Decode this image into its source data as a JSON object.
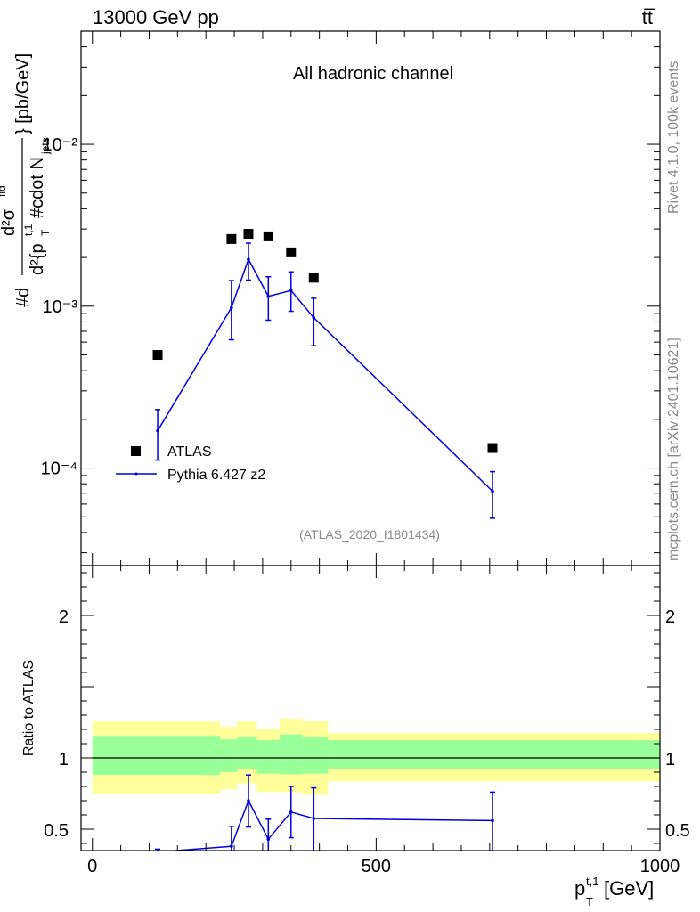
{
  "header": {
    "energy_label": "13000 GeV pp",
    "process_label": "tt̅"
  },
  "side_labels": {
    "rivet": "Rivet 4.1.0,  100k events",
    "mcplots": "mcplots.cern.ch [arXiv:2401.10621]"
  },
  "chart_data": [
    {
      "type": "scatter",
      "panel": "main",
      "title": "All hadronic channel",
      "analysis_id": "(ATLAS_2020_I1801434)",
      "ylabel": "#d d²σᶠᶦᵈ / d²{p_T^{t,1} #cdot N_jets} [pb/GeV]",
      "ylabel_parts": {
        "prefix": "#d",
        "numerator": "d²σ",
        "numerator_sup": "fid",
        "denominator": "d²{p",
        "denominator_sub": "T",
        "denominator_sup": "t,1",
        "denominator_rest": "#cdot N",
        "denominator_rest_sub": "jets",
        "suffix": "} [pb/GeV]"
      },
      "xlim": [
        -20,
        1000
      ],
      "ylim": [
        2.5e-05,
        0.05
      ],
      "yscale": "log",
      "y_tick_labels": [
        "10⁻⁴",
        "10⁻³",
        "10⁻²"
      ],
      "y_tick_values": [
        0.0001,
        0.001,
        0.01
      ],
      "legend_placement": "bottom-left",
      "series": [
        {
          "name": "ATLAS",
          "marker": "square",
          "color": "#000000",
          "x": [
            115,
            245,
            275,
            310,
            350,
            390,
            705
          ],
          "y": [
            0.0005,
            0.0026,
            0.0028,
            0.0027,
            0.00215,
            0.0015,
            0.000133
          ]
        },
        {
          "name": "Pythia 6.427 z2",
          "marker": "line",
          "color": "#0000dd",
          "x": [
            115,
            245,
            275,
            310,
            350,
            390,
            705
          ],
          "y": [
            0.00017,
            0.00098,
            0.00195,
            0.00115,
            0.00125,
            0.00085,
            7.2e-05
          ],
          "y_low": [
            0.000112,
            0.00062,
            0.00145,
            0.00082,
            0.00093,
            0.00057,
            4.9e-05
          ],
          "y_high": [
            0.00023,
            0.00144,
            0.00245,
            0.00152,
            0.00163,
            0.00112,
            9.5e-05
          ]
        }
      ]
    },
    {
      "type": "line",
      "panel": "ratio",
      "ylabel": "Ratio to ATLAS",
      "xlabel": "p_T^{t,1} [GeV]",
      "xlabel_parts": {
        "main": "p",
        "sub": "T",
        "sup": "t,1",
        "unit": " [GeV]"
      },
      "xlim": [
        -20,
        1000
      ],
      "ylim": [
        0.35,
        2.35
      ],
      "x_tick_labels": [
        "0",
        "500",
        "1000"
      ],
      "x_tick_values": [
        0,
        500,
        1000
      ],
      "y_tick_labels": [
        "0.5",
        "1",
        "2"
      ],
      "y_tick_values": [
        0.5,
        1,
        2
      ],
      "reference_line": 1,
      "bands": {
        "bin_edges": [
          0,
          225,
          255,
          290,
          330,
          370,
          415,
          1000
        ],
        "yellow": {
          "color": "#ffff99",
          "low": [
            0.75,
            0.78,
            0.82,
            0.76,
            0.76,
            0.74,
            0.835
          ],
          "high": [
            1.255,
            1.22,
            1.255,
            1.2,
            1.275,
            1.26,
            1.175
          ]
        },
        "green": {
          "color": "#99ff99",
          "low": [
            0.88,
            0.9,
            0.92,
            0.89,
            0.885,
            0.89,
            0.925
          ],
          "high": [
            1.155,
            1.13,
            1.145,
            1.125,
            1.165,
            1.15,
            1.125
          ]
        }
      },
      "series": [
        {
          "name": "Pythia 6.427 z2 / ATLAS",
          "color": "#0000dd",
          "x": [
            115,
            245,
            275,
            310,
            350,
            390,
            705
          ],
          "y": [
            0.34,
            0.38,
            0.7,
            0.43,
            0.62,
            0.575,
            0.56
          ],
          "y_low": [
            0.3,
            0.3,
            0.515,
            0.3,
            0.44,
            0.3,
            0.3
          ],
          "y_high": [
            0.36,
            0.52,
            0.88,
            0.57,
            0.8,
            0.79,
            0.76
          ]
        }
      ]
    }
  ]
}
